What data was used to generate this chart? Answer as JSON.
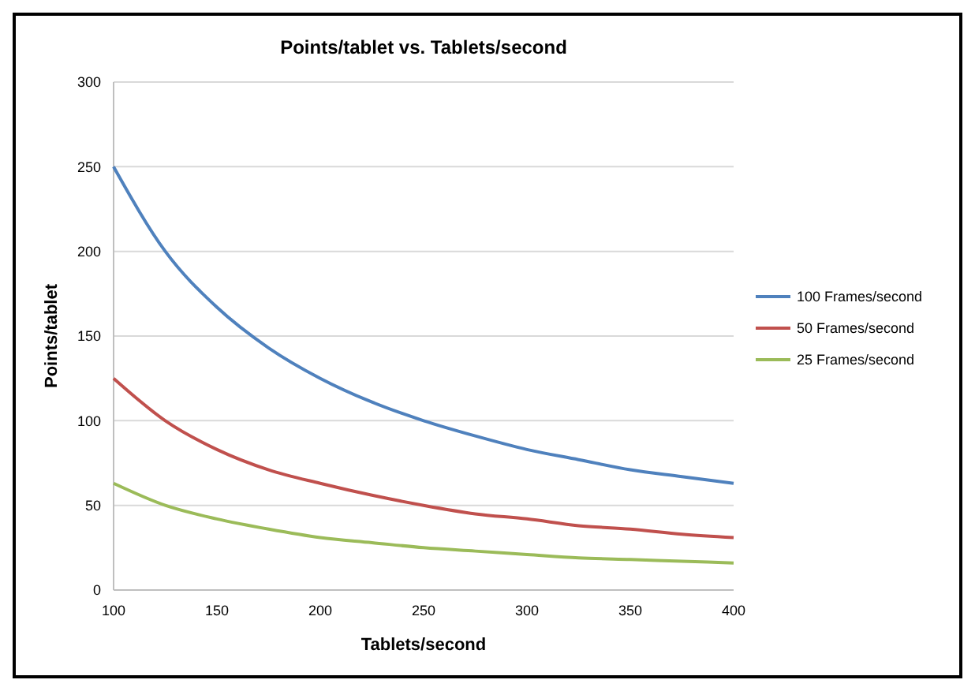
{
  "chart_data": {
    "type": "line",
    "title": "Points/tablet vs. Tablets/second",
    "xlabel": "Tablets/second",
    "ylabel": "Points/tablet",
    "x": [
      100,
      125,
      150,
      175,
      200,
      225,
      250,
      275,
      300,
      325,
      350,
      375,
      400
    ],
    "series": [
      {
        "name": "100 Frames/second",
        "color": "#4f81bd",
        "values": [
          250,
          200,
          167,
          143,
          125,
          111,
          100,
          91,
          83,
          77,
          71,
          67,
          63
        ]
      },
      {
        "name": "50 Frames/second",
        "color": "#c0504d",
        "values": [
          125,
          100,
          83,
          71,
          63,
          56,
          50,
          45,
          42,
          38,
          36,
          33,
          31
        ]
      },
      {
        "name": "25 Frames/second",
        "color": "#9bbb59",
        "values": [
          63,
          50,
          42,
          36,
          31,
          28,
          25,
          23,
          21,
          19,
          18,
          17,
          16
        ]
      }
    ],
    "xlim": [
      100,
      400
    ],
    "xticks": [
      100,
      150,
      200,
      250,
      300,
      350,
      400
    ],
    "ylim": [
      0,
      300
    ],
    "yticks": [
      0,
      50,
      100,
      150,
      200,
      250,
      300
    ],
    "grid": "y",
    "legend": "right",
    "marker": "none",
    "line_style": "solid"
  }
}
